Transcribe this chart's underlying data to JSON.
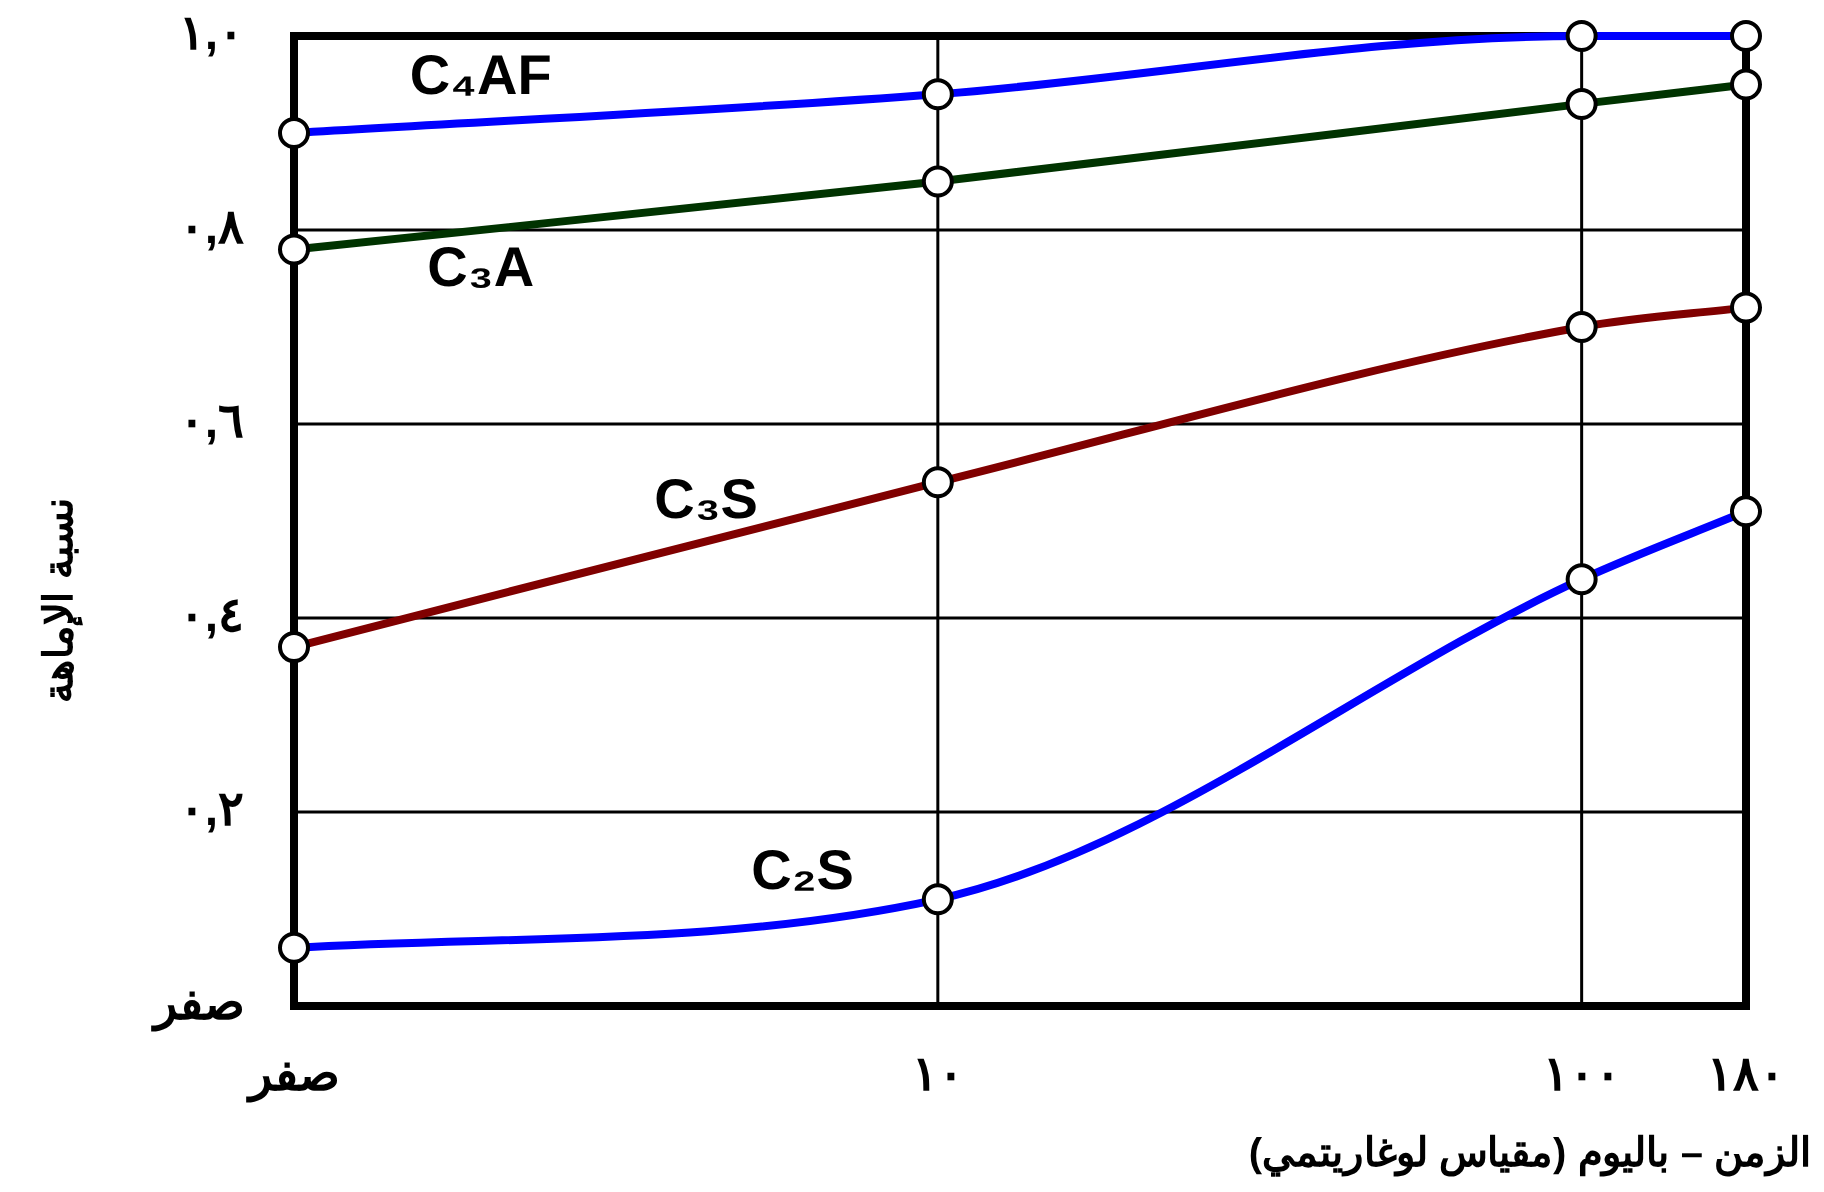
{
  "chart_data": {
    "type": "line",
    "xlabel": "الزمن – باليوم (مقياس لوغاريتمي)",
    "ylabel": "نسبة الإماهة",
    "log": "x",
    "grid": true,
    "marker": "circle",
    "line_style": "solid",
    "xlim": [
      1,
      180
    ],
    "xticks": [
      {
        "value": 1,
        "label": "صفر"
      },
      {
        "value": 10,
        "label": "١٠"
      },
      {
        "value": 100,
        "label": "١٠٠"
      },
      {
        "value": 180,
        "label": "١٨٠"
      }
    ],
    "ylim": [
      0,
      1
    ],
    "yticks": [
      {
        "value": 0,
        "label": "صفر"
      },
      {
        "value": 0.2,
        "label": "٠,٢"
      },
      {
        "value": 0.4,
        "label": "٠,٤"
      },
      {
        "value": 0.6,
        "label": "٠,٦"
      },
      {
        "value": 0.8,
        "label": "٠,٨"
      },
      {
        "value": 1,
        "label": "١,٠"
      }
    ],
    "x": [
      1,
      10,
      100,
      180
    ],
    "series": [
      {
        "name": "C₄AF",
        "color": "#0000ff",
        "values": [
          0.9,
          0.94,
          1.0,
          1.0
        ]
      },
      {
        "name": "C₃A",
        "color": "#003300",
        "values": [
          0.78,
          0.85,
          0.93,
          0.95
        ]
      },
      {
        "name": "C₃S",
        "color": "#800000",
        "values": [
          0.37,
          0.54,
          0.7,
          0.72
        ]
      },
      {
        "name": "C₂S",
        "color": "#0000ff",
        "values": [
          0.06,
          0.11,
          0.44,
          0.51
        ]
      }
    ]
  }
}
